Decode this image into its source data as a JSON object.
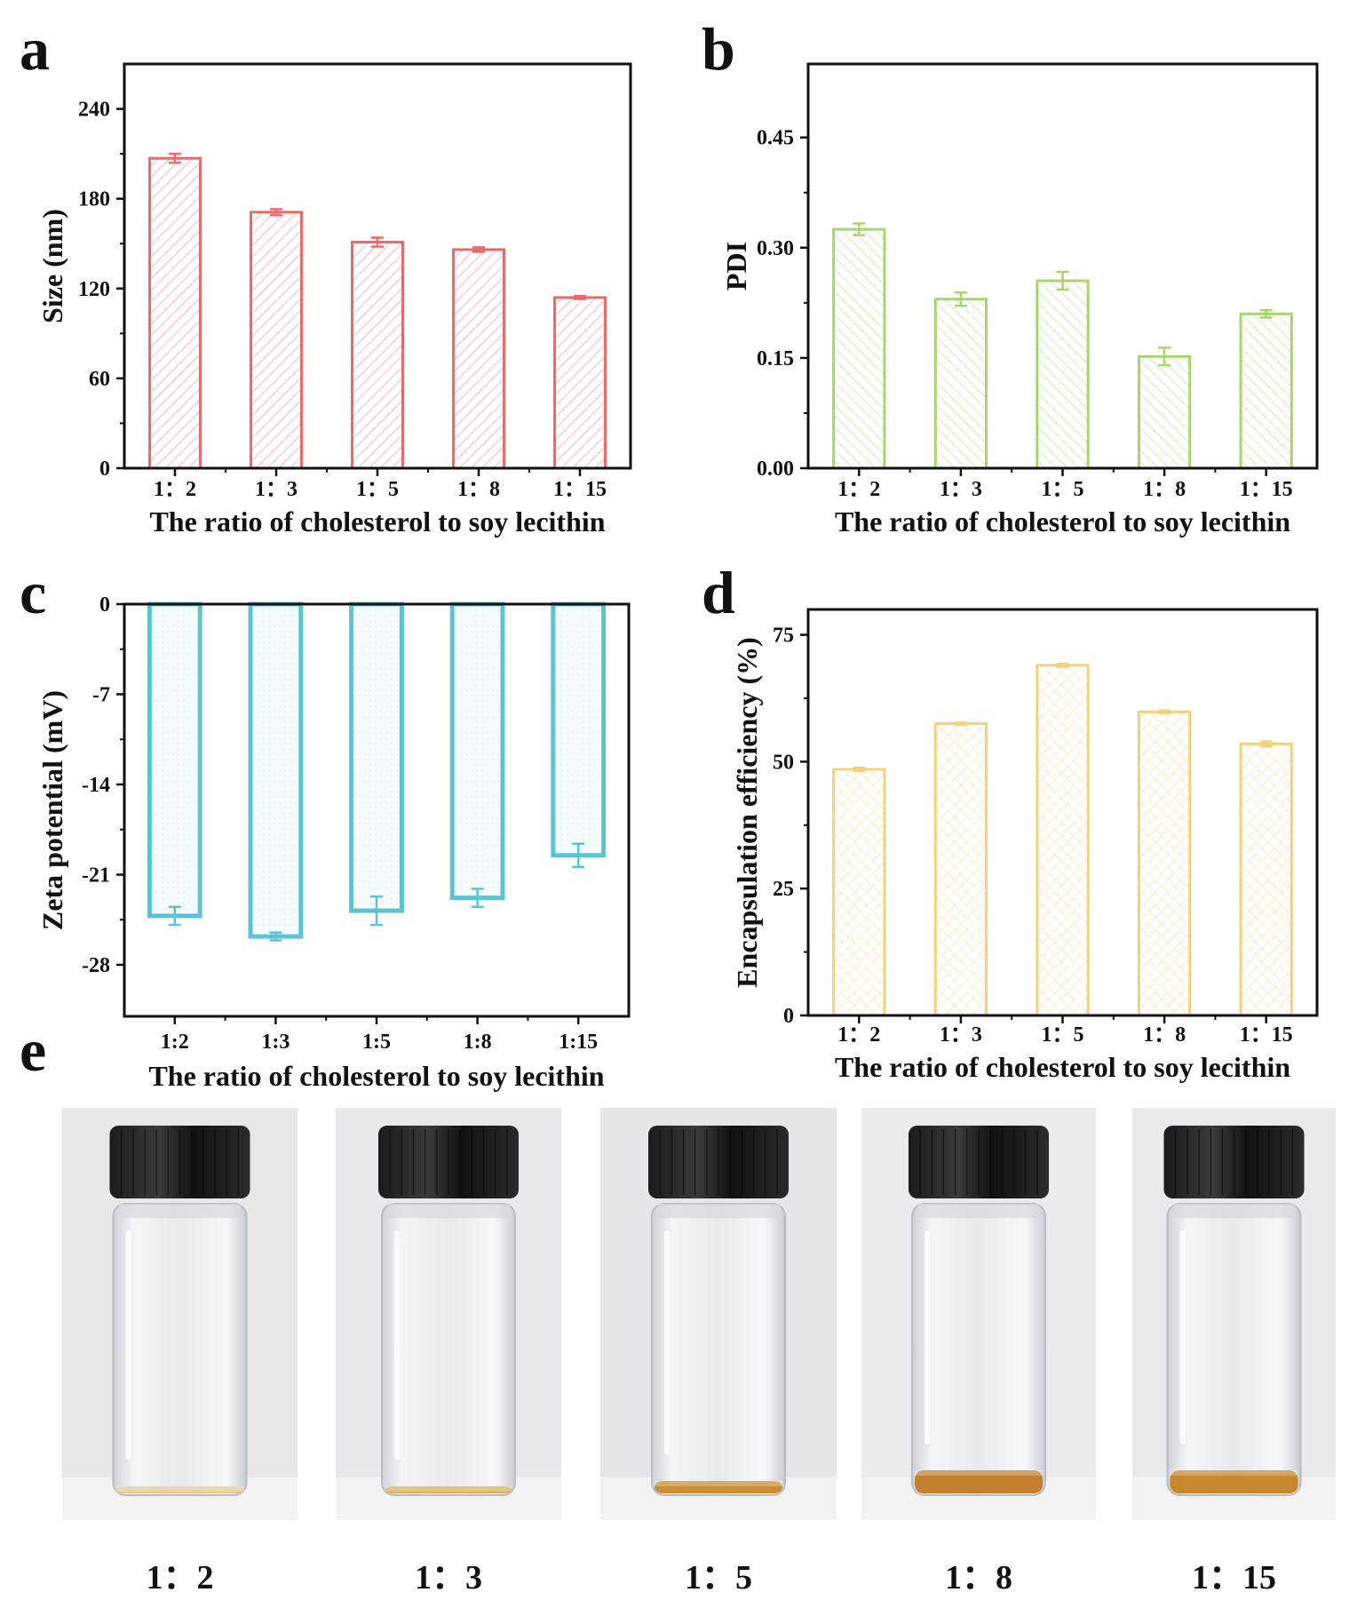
{
  "panel_letters": [
    "a",
    "b",
    "c",
    "d",
    "e"
  ],
  "chart_data": [
    {
      "panel": "a",
      "type": "bar",
      "categories": [
        "1：2",
        "1：3",
        "1：5",
        "1：8",
        "1：15"
      ],
      "values": [
        207,
        171,
        151,
        146,
        114
      ],
      "errors": [
        3,
        2,
        3,
        1.5,
        1
      ],
      "xlabel": "The ratio of cholesterol to soy lecithin",
      "ylabel": "Size (nm)",
      "ylim": [
        0,
        270
      ],
      "yticks": [
        0,
        60,
        120,
        180,
        240
      ],
      "ytick_labels": [
        "0",
        "60",
        "120",
        "180",
        "240"
      ],
      "color": "#ea6a6c",
      "hatch": "diagonal",
      "grid": false
    },
    {
      "panel": "b",
      "type": "bar",
      "categories": [
        "1：2",
        "1：3",
        "1：5",
        "1：8",
        "1：15"
      ],
      "values": [
        0.325,
        0.23,
        0.255,
        0.152,
        0.21
      ],
      "errors": [
        0.008,
        0.009,
        0.012,
        0.012,
        0.005
      ],
      "xlabel": "The ratio of cholesterol to soy lecithin",
      "ylabel": "PDI",
      "ylim": [
        0,
        0.55
      ],
      "yticks": [
        0,
        0.15,
        0.3,
        0.45
      ],
      "ytick_labels": [
        "0.00",
        "0.15",
        "0.30",
        "0.45"
      ],
      "color": "#a9d46f",
      "hatch": "diagonal-back",
      "grid": false
    },
    {
      "panel": "c",
      "type": "bar",
      "categories": [
        "1:2",
        "1:3",
        "1:5",
        "1:8",
        "1:15"
      ],
      "values": [
        -24.2,
        -25.8,
        -23.8,
        -22.8,
        -19.5
      ],
      "errors": [
        0.7,
        0.3,
        1.1,
        0.7,
        0.9
      ],
      "xlabel": "The ratio of cholesterol to soy lecithin",
      "ylabel": "Zeta potential (mV)",
      "ylim": [
        -32,
        0
      ],
      "yticks": [
        0,
        -7,
        -14,
        -21,
        -28
      ],
      "ytick_labels": [
        "0",
        "-7",
        "-14",
        "-21",
        "-28"
      ],
      "color": "#5bc3d3",
      "hatch": "dots",
      "grid": false
    },
    {
      "panel": "d",
      "type": "bar",
      "categories": [
        "1：2",
        "1：3",
        "1：5",
        "1：8",
        "1：15"
      ],
      "values": [
        48.5,
        57.5,
        69,
        59.8,
        53.5
      ],
      "errors": [
        0.3,
        0.2,
        0.3,
        0.3,
        0.5
      ],
      "xlabel": "The ratio of cholesterol to soy lecithin",
      "ylabel": "Encapsulation efficiency (%)",
      "ylim": [
        0,
        80
      ],
      "yticks": [
        0,
        25,
        50,
        75
      ],
      "ytick_labels": [
        "0",
        "25",
        "50",
        "75"
      ],
      "color": "#f2d27f",
      "hatch": "crosshatch",
      "grid": false
    }
  ],
  "photos": {
    "labels": [
      "1：2",
      "1：3",
      "1：5",
      "1：8",
      "1：15"
    ],
    "liquid_colors": [
      "#e6c88a",
      "#d8ae55",
      "#c88a2a",
      "#c07a25",
      "#c48424"
    ],
    "backgrounds": [
      "#e9e8e6",
      "#e8e9ec",
      "#e6e7ea",
      "#ebebee",
      "#e9eaed"
    ]
  }
}
